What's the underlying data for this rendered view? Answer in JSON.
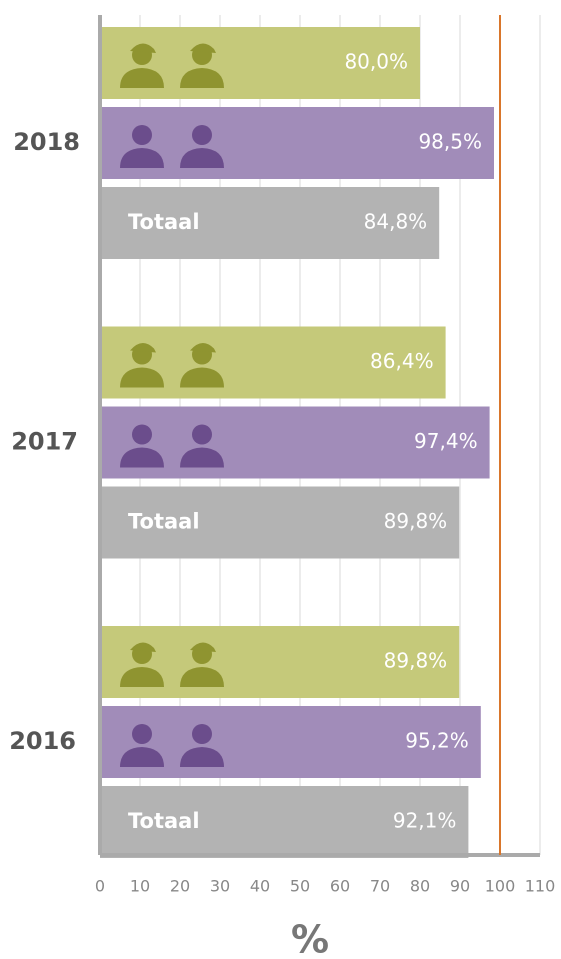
{
  "chart_data": {
    "type": "hbar",
    "categories": [
      "2018",
      "2017",
      "2016"
    ],
    "series": [
      {
        "color": "#c5c97a",
        "icon_color": "#8f9430",
        "icon": "military",
        "values": [
          80.0,
          86.4,
          89.8
        ],
        "value_labels": [
          "80,0%",
          "86,4%",
          "89,8%"
        ]
      },
      {
        "color": "#a18cb9",
        "icon_color": "#6b4d8c",
        "icon": "civilian",
        "values": [
          98.5,
          97.4,
          95.2
        ],
        "value_labels": [
          "98,5%",
          "97,4%",
          "95,2%"
        ]
      },
      {
        "name": "Totaal",
        "color": "#b3b3b3",
        "values": [
          84.8,
          89.8,
          92.1
        ],
        "value_labels": [
          "84,8%",
          "89,8%",
          "92,1%"
        ]
      }
    ],
    "xlim": [
      0,
      110
    ],
    "xticks": [
      0,
      10,
      20,
      30,
      40,
      50,
      60,
      70,
      80,
      90,
      100,
      110
    ],
    "xlabel": "%",
    "grid": true,
    "reference_line": {
      "value": 100,
      "color": "#d9762b"
    }
  }
}
